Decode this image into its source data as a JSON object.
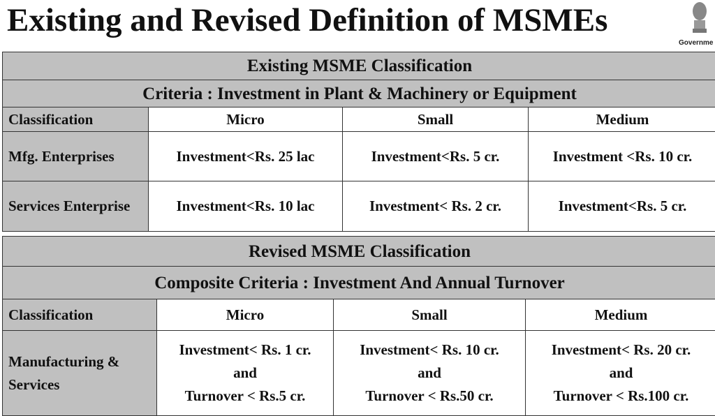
{
  "title": "Existing and Revised Definition of MSMEs",
  "emblem": {
    "icon": "national-emblem-icon",
    "text": "Governme"
  },
  "existing": {
    "heading": "Existing MSME Classification",
    "criteria": "Criteria  :  Investment in Plant & Machinery or Equipment",
    "headers": [
      "Classification",
      "Micro",
      "Small",
      "Medium"
    ],
    "rows": [
      {
        "label": "Mfg. Enterprises",
        "cells": [
          "Investment<Rs. 25 lac",
          "Investment<Rs. 5 cr.",
          "Investment <Rs. 10 cr."
        ]
      },
      {
        "label": "Services Enterprise",
        "cells": [
          "Investment<Rs. 10 lac",
          "Investment< Rs. 2 cr.",
          "Investment<Rs. 5 cr."
        ]
      }
    ]
  },
  "revised": {
    "heading": "Revised MSME Classification",
    "criteria": "Composite Criteria  :  Investment And Annual Turnover",
    "headers": [
      "Classification",
      "Micro",
      "Small",
      "Medium"
    ],
    "row": {
      "label": "Manufacturing & Services",
      "cells": [
        [
          "Investment< Rs. 1 cr.",
          "and",
          "Turnover < Rs.5 cr."
        ],
        [
          "Investment< Rs. 10 cr.",
          "and",
          "Turnover < Rs.50 cr."
        ],
        [
          "Investment< Rs. 20 cr.",
          "and",
          "Turnover < Rs.100 cr."
        ]
      ]
    }
  }
}
